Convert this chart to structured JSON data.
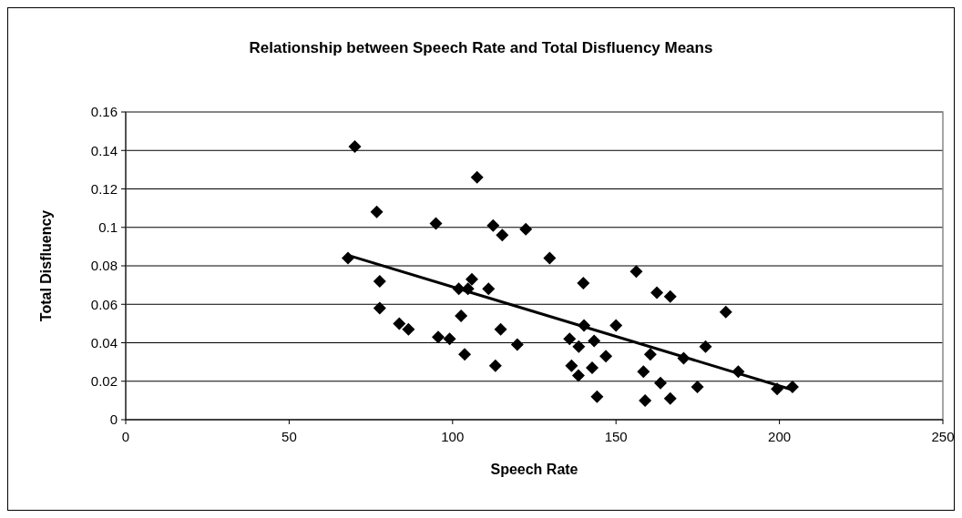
{
  "chart_data": {
    "type": "scatter",
    "title": "Relationship between Speech Rate and Total Disfluency Means",
    "xlabel": "Speech Rate",
    "ylabel": "Total Disfluency",
    "xlim": [
      0,
      250
    ],
    "ylim": [
      0,
      0.16
    ],
    "xticks": [
      0,
      50,
      100,
      150,
      200,
      250
    ],
    "yticks": [
      0,
      0.02,
      0.04,
      0.06,
      0.08,
      0.1,
      0.12,
      0.14,
      0.16
    ],
    "grid": "y",
    "marker": "diamond",
    "series": [
      {
        "color": "#000000",
        "x": [
          70.1,
          76.8,
          68.0,
          77.7,
          77.7,
          83.7,
          86.5,
          94.9,
          95.6,
          99.1,
          101.9,
          102.6,
          103.7,
          104.7,
          105.9,
          107.5,
          111.0,
          112.4,
          113.1,
          114.7,
          115.2,
          119.8,
          122.4,
          129.7,
          135.8,
          136.4,
          138.6,
          138.5,
          140.0,
          140.2,
          142.7,
          143.3,
          144.2,
          146.9,
          150.0,
          156.2,
          158.4,
          158.9,
          160.5,
          162.5,
          163.6,
          166.6,
          166.6,
          170.7,
          174.9,
          177.4,
          183.6,
          187.4,
          199.3,
          204.0
        ],
        "values": [
          0.142,
          0.108,
          0.084,
          0.072,
          0.058,
          0.05,
          0.047,
          0.102,
          0.043,
          0.042,
          0.068,
          0.054,
          0.034,
          0.068,
          0.073,
          0.126,
          0.068,
          0.101,
          0.028,
          0.047,
          0.096,
          0.039,
          0.099,
          0.084,
          0.042,
          0.028,
          0.038,
          0.023,
          0.071,
          0.049,
          0.027,
          0.041,
          0.012,
          0.033,
          0.049,
          0.077,
          0.025,
          0.01,
          0.034,
          0.066,
          0.019,
          0.064,
          0.011,
          0.032,
          0.017,
          0.038,
          0.056,
          0.025,
          0.016,
          0.017
        ]
      },
      {
        "type": "line",
        "color": "#000000",
        "marker": "none",
        "x": [
          68,
          204
        ],
        "values": [
          0.0855,
          0.0155
        ]
      }
    ]
  }
}
